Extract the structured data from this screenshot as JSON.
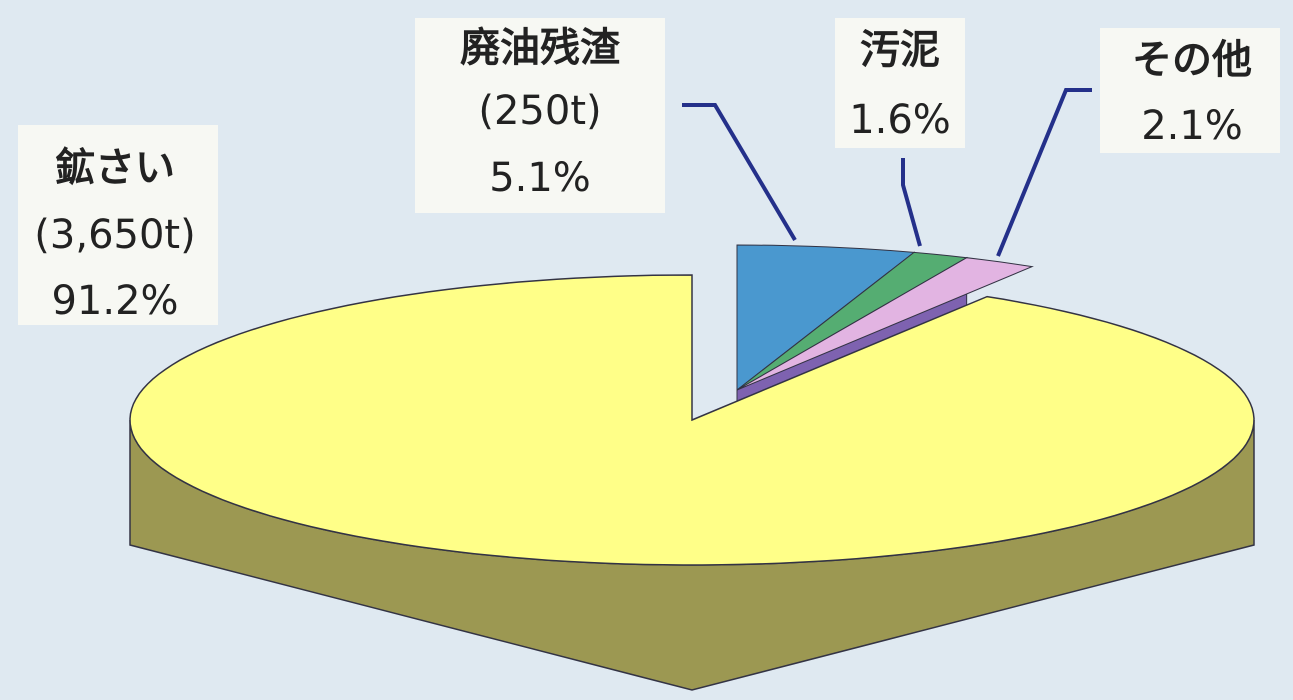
{
  "chart_data": {
    "type": "pie3d",
    "categories": [
      "鉱さい",
      "廃油残渣",
      "汚泥",
      "その他"
    ],
    "values": [
      91.2,
      5.1,
      1.6,
      2.1
    ],
    "value_labels": [
      "91.2%",
      "5.1%",
      "1.6%",
      "2.1%"
    ],
    "tonnage_labels": [
      "(3,650t)",
      "(250t)",
      null,
      null
    ],
    "colors": [
      "#ffff88",
      "#4a98cf",
      "#55ad72",
      "#e2b4e2"
    ],
    "side_colors": [
      "#9c9852",
      "#2d6c9c",
      "#2f7c4c",
      "#7e62b0"
    ]
  }
}
